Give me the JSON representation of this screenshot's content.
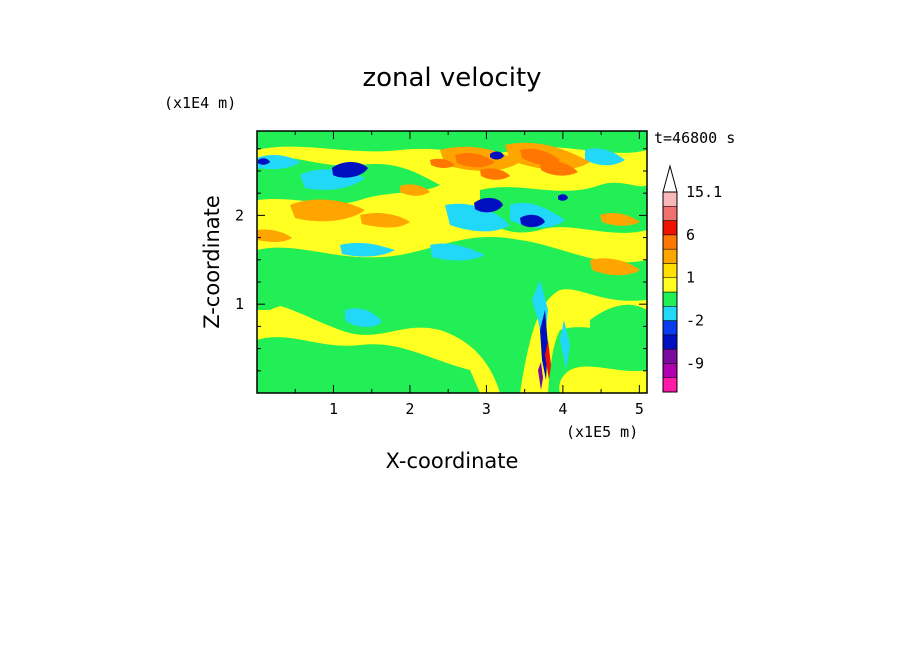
{
  "chart_data": {
    "type": "heatmap",
    "title": "zonal velocity",
    "xlabel": "X-coordinate",
    "ylabel": "Z-coordinate",
    "x_unit": "(x1E5 m)",
    "y_unit": "(x1E4 m)",
    "time_label": "t=46800 s",
    "x_ticks": [
      "1",
      "2",
      "3",
      "4",
      "5"
    ],
    "x_tick_values": [
      1,
      2,
      3,
      4,
      5
    ],
    "y_ticks": [
      "1",
      "2"
    ],
    "y_tick_values": [
      1,
      2
    ],
    "xlim": [
      0,
      5.1
    ],
    "ylim": [
      0,
      2.95
    ],
    "colorbar": {
      "labels": [
        "15.1",
        "6",
        "1",
        "-2",
        "-9"
      ],
      "label_values": [
        15.1,
        6,
        1,
        -2,
        -9
      ],
      "levels": [
        -15,
        -12,
        -9,
        -6,
        -3,
        -2,
        -1,
        0,
        1,
        2,
        3,
        6,
        9,
        12,
        15.1
      ],
      "colors": [
        "#ff1aa8",
        "#b000b0",
        "#7a0aa0",
        "#0010c0",
        "#0a3cf0",
        "#22d8f8",
        "#22ee55",
        "#ffff22",
        "#ffe000",
        "#ffa500",
        "#ff7700",
        "#ee1100",
        "#f07070",
        "#f8b8b8"
      ]
    },
    "features": [
      {
        "x": 1.2,
        "z": 2.5,
        "value": -6
      },
      {
        "x": 2.95,
        "z": 2.1,
        "value": -6
      },
      {
        "x": 3.55,
        "z": 1.95,
        "value": -6
      },
      {
        "x": 4.2,
        "z": 2.7,
        "value": -3
      },
      {
        "x": 0.1,
        "z": 2.6,
        "value": -3
      },
      {
        "x": 3.0,
        "z": 2.55,
        "value": 6
      },
      {
        "x": 3.6,
        "z": 2.65,
        "value": 6
      },
      {
        "x": 0.9,
        "z": 2.0,
        "value": 3
      },
      {
        "x": 3.6,
        "z": 0.4,
        "value": -6
      }
    ]
  }
}
